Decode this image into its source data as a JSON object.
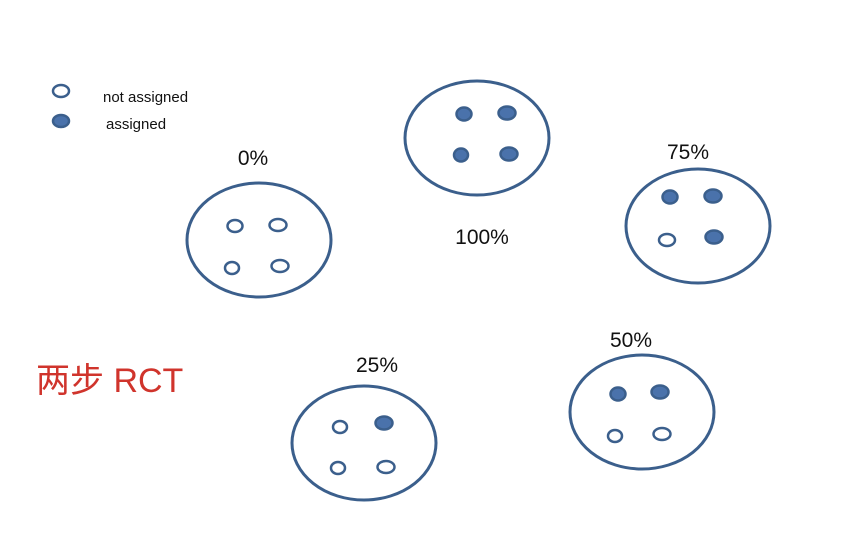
{
  "title": "两步 RCT",
  "legend": {
    "not_assigned": "not assigned",
    "assigned": "assigned"
  },
  "colors": {
    "outline": "#3b5f8c",
    "filled": "#4a72ab",
    "title": "#d0342c"
  },
  "clusters": [
    {
      "label": "0%",
      "units_assigned": [
        false,
        false,
        false,
        false
      ]
    },
    {
      "label": "100%",
      "units_assigned": [
        true,
        true,
        true,
        true
      ]
    },
    {
      "label": "75%",
      "units_assigned": [
        true,
        true,
        false,
        true
      ]
    },
    {
      "label": "25%",
      "units_assigned": [
        false,
        true,
        false,
        false
      ]
    },
    {
      "label": "50%",
      "units_assigned": [
        true,
        true,
        false,
        false
      ]
    }
  ]
}
